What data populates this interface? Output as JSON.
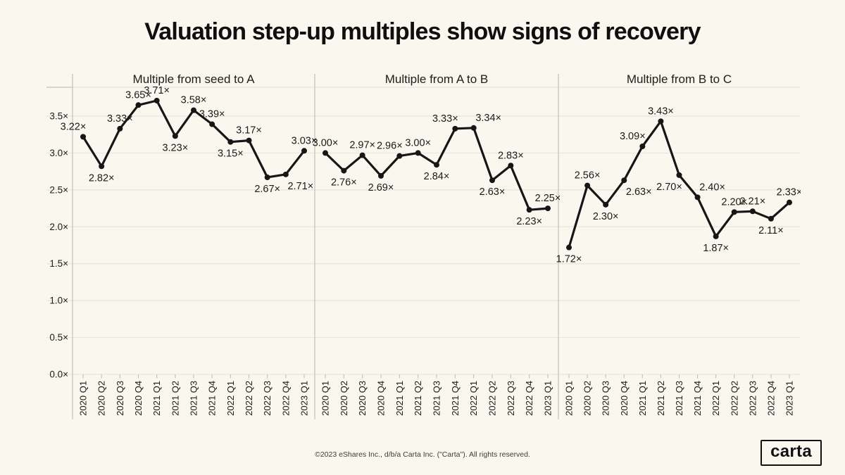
{
  "page": {
    "background": "#faf7ef"
  },
  "header": {
    "title": "Valuation step-up multiples show signs of recovery"
  },
  "footer": {
    "copyright": "©2023 eShares Inc., d/b/a Carta Inc. (\"Carta\"). All rights reserved.",
    "logo_text": "carta"
  },
  "colors": {
    "background": "#faf7ef",
    "line": "#161616",
    "grid": "#e9e6df",
    "axis": "#c3c5c2",
    "text": "#1a1a1a"
  },
  "chart_axes": {
    "y_ticks": [
      0,
      0.5,
      1.0,
      1.5,
      2.0,
      2.5,
      3.0,
      3.5
    ],
    "y_tick_labels": [
      "0.0×",
      "0.5×",
      "1.0×",
      "1.5×",
      "2.0×",
      "2.5×",
      "3.0×",
      "3.5×"
    ],
    "ylim": [
      0,
      3.5
    ],
    "unit_suffix": "×",
    "grid": "on",
    "legend": "none"
  },
  "chart_data": [
    {
      "type": "line",
      "title": "Multiple from seed to A",
      "categories": [
        "2020 Q1",
        "2020 Q2",
        "2020 Q3",
        "2020 Q4",
        "2021 Q1",
        "2021 Q2",
        "2021 Q3",
        "2021 Q4",
        "2022 Q1",
        "2022 Q2",
        "2022 Q3",
        "2022 Q4",
        "2023 Q1"
      ],
      "values": [
        3.22,
        2.82,
        3.33,
        3.65,
        3.71,
        3.23,
        3.58,
        3.39,
        3.15,
        3.17,
        2.67,
        2.71,
        3.03
      ],
      "point_labels": [
        "3.22×",
        "2.82×",
        "3.33×",
        "3.65×",
        "3.71×",
        "3.23×",
        "3.58×",
        "3.39×",
        "3.15×",
        "3.17×",
        "2.67×",
        "2.71×",
        "3.03×"
      ],
      "label_pos": [
        "above-left",
        "below",
        "above",
        "above",
        "above",
        "below",
        "above",
        "above",
        "below",
        "above",
        "below",
        "below-right",
        "above"
      ],
      "ylim": [
        0,
        3.5
      ]
    },
    {
      "type": "line",
      "title": "Multiple from A to B",
      "categories": [
        "2020 Q1",
        "2020 Q2",
        "2020 Q3",
        "2020 Q4",
        "2021 Q1",
        "2021 Q2",
        "2021 Q3",
        "2021 Q4",
        "2022 Q1",
        "2022 Q2",
        "2022 Q3",
        "2022 Q4",
        "2023 Q1"
      ],
      "values": [
        3.0,
        2.76,
        2.97,
        2.69,
        2.96,
        3.0,
        2.84,
        3.33,
        3.34,
        2.63,
        2.83,
        2.23,
        2.25
      ],
      "point_labels": [
        "3.00×",
        "2.76×",
        "2.97×",
        "2.69×",
        "2.96×",
        "3.00×",
        "2.84×",
        "3.33×",
        "3.34×",
        "2.63×",
        "2.83×",
        "2.23×",
        "2.25×"
      ],
      "label_pos": [
        "above",
        "below",
        "above",
        "below",
        "above-left",
        "above",
        "below",
        "above-left",
        "above-right",
        "below",
        "above",
        "below",
        "above"
      ],
      "ylim": [
        0,
        3.5
      ]
    },
    {
      "type": "line",
      "title": "Multiple from B to C",
      "categories": [
        "2020 Q1",
        "2020 Q2",
        "2020 Q3",
        "2020 Q4",
        "2021 Q1",
        "2021 Q2",
        "2021 Q3",
        "2021 Q4",
        "2022 Q1",
        "2022 Q2",
        "2022 Q3",
        "2022 Q4",
        "2023 Q1"
      ],
      "values": [
        1.72,
        2.56,
        2.3,
        2.63,
        3.09,
        3.43,
        2.7,
        2.4,
        1.87,
        2.2,
        2.21,
        2.11,
        2.33
      ],
      "point_labels": [
        "1.72×",
        "2.56×",
        "2.30×",
        "2.63×",
        "3.09×",
        "3.43×",
        "2.70×",
        "2.40×",
        "1.87×",
        "2.20×",
        "2.21×",
        "2.11×",
        "2.33×"
      ],
      "label_pos": [
        "below",
        "above",
        "below",
        "below-right",
        "above-left",
        "above",
        "below-left",
        "above-right",
        "below",
        "above",
        "above",
        "below",
        "above"
      ],
      "ylim": [
        0,
        3.5
      ]
    }
  ]
}
